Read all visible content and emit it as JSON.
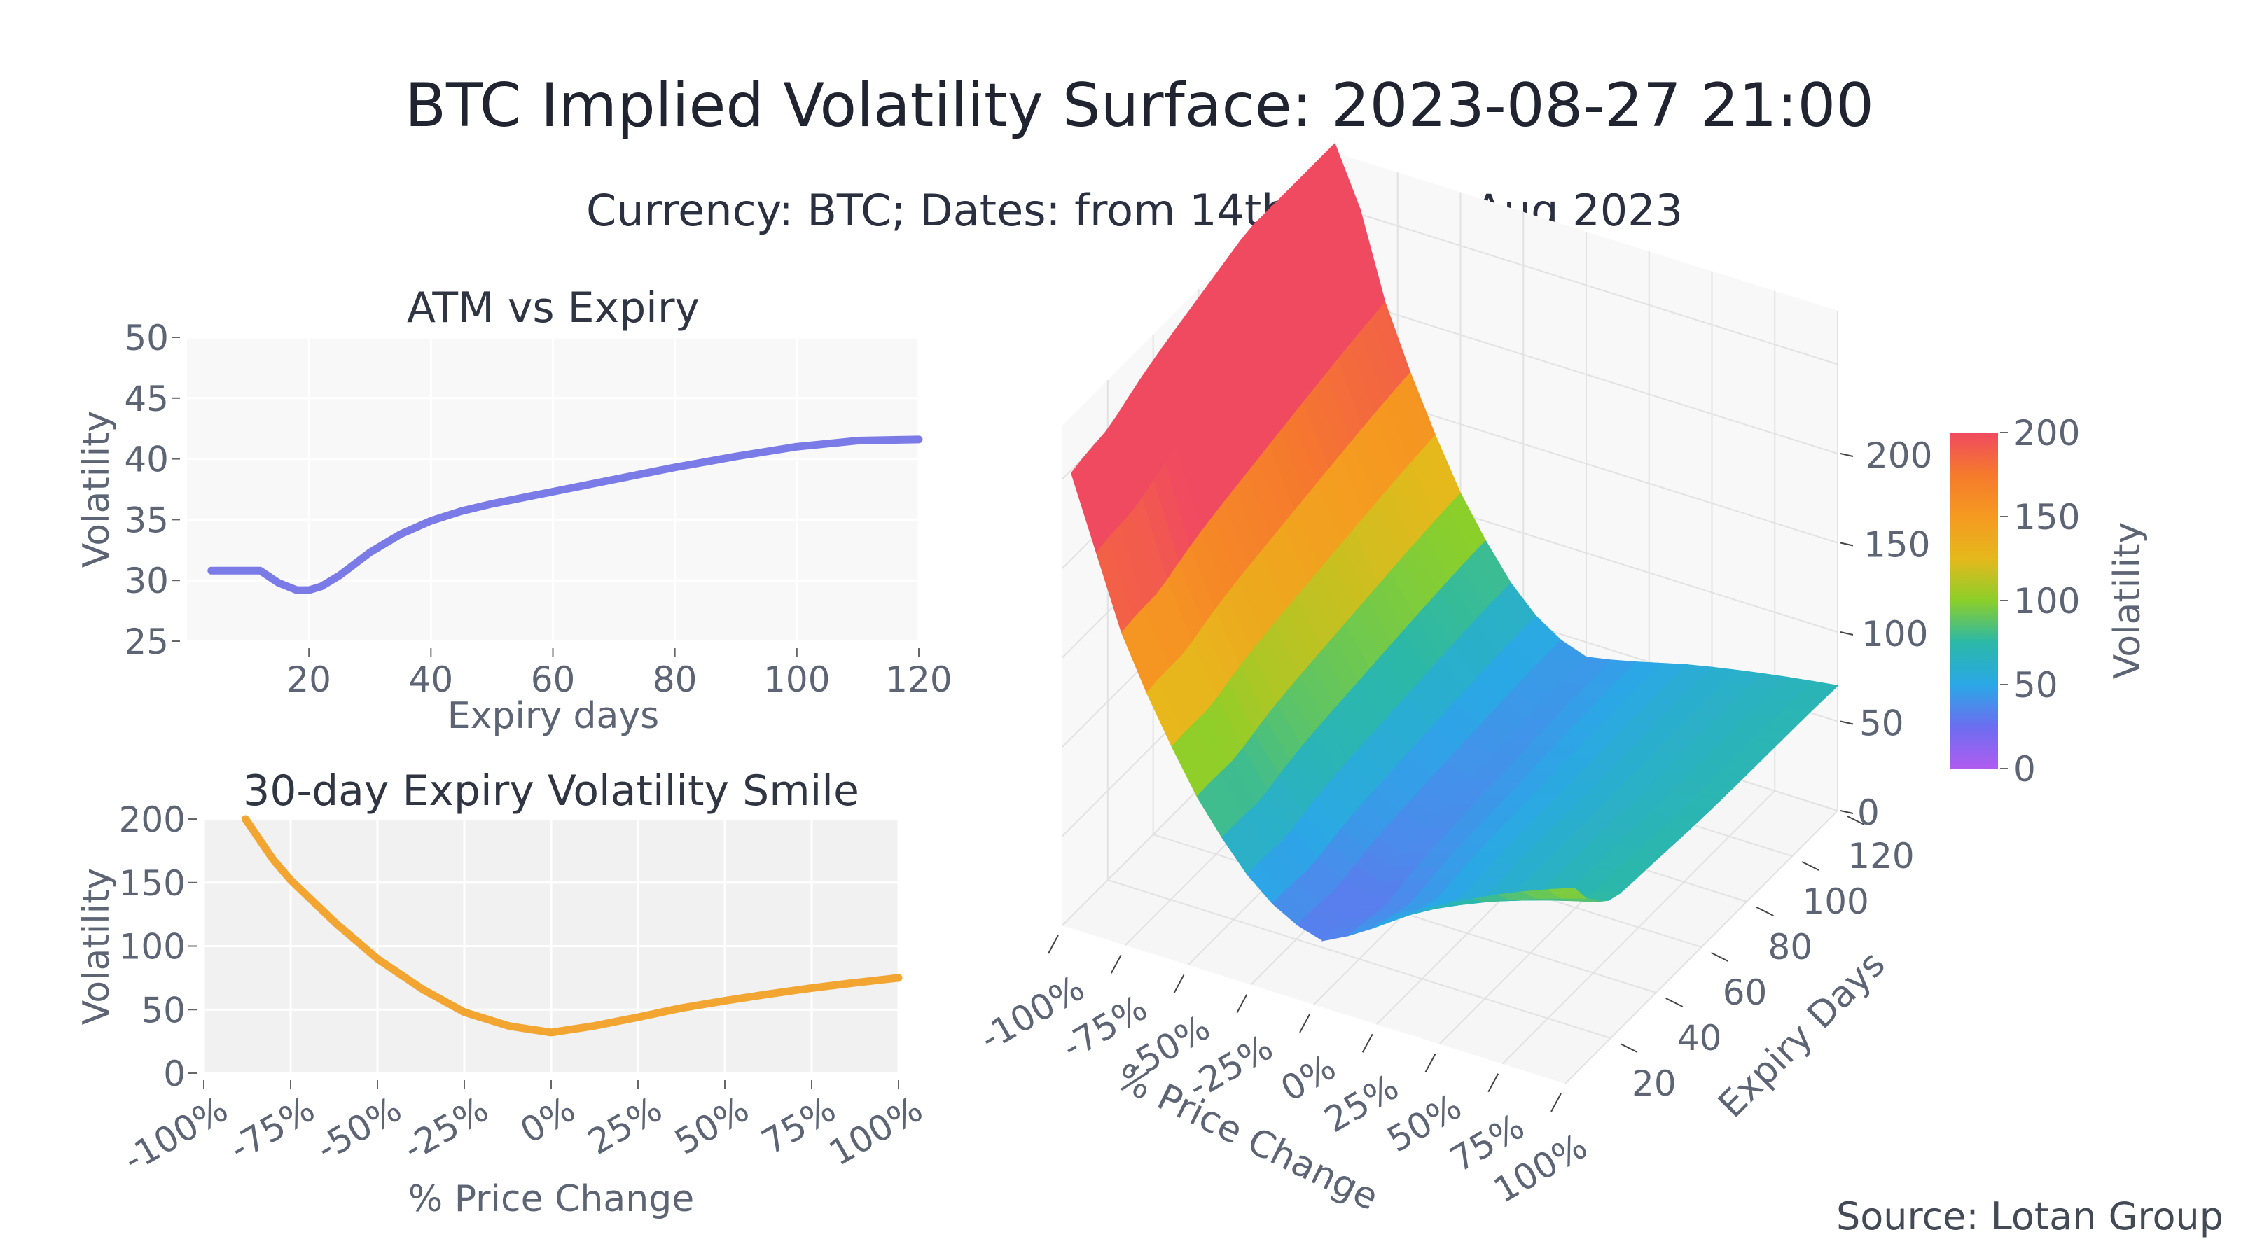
{
  "title": "BTC Implied Volatility Surface: 2023-08-27 21:00",
  "subtitle": "Currency: BTC; Dates: from 14th to 27th Aug 2023",
  "source": "Source: Lotan Group",
  "chart_data": [
    {
      "type": "line",
      "title": "ATM vs Expiry",
      "xlabel": "Expiry days",
      "ylabel": "Volatility",
      "xlim": [
        0,
        120
      ],
      "ylim": [
        25,
        50
      ],
      "xticks": [
        "20",
        "40",
        "60",
        "80",
        "100",
        "120"
      ],
      "yticks": [
        "25",
        "30",
        "35",
        "40",
        "45",
        "50"
      ],
      "grid": true,
      "color": "#7b7be8",
      "x": [
        4,
        8,
        12,
        15,
        18,
        20,
        22,
        25,
        30,
        35,
        40,
        45,
        50,
        60,
        70,
        80,
        90,
        100,
        110,
        120
      ],
      "y": [
        30.8,
        30.8,
        30.8,
        29.8,
        29.2,
        29.2,
        29.5,
        30.4,
        32.3,
        33.8,
        34.9,
        35.7,
        36.3,
        37.3,
        38.3,
        39.3,
        40.2,
        41.0,
        41.5,
        41.6
      ]
    },
    {
      "type": "line",
      "title": "30-day Expiry Volatility Smile",
      "xlabel": "% Price Change",
      "ylabel": "Volatility",
      "xlim": [
        -100,
        100
      ],
      "ylim": [
        0,
        200
      ],
      "xticks": [
        "-100%",
        "-75%",
        "-50%",
        "-25%",
        "0%",
        "25%",
        "50%",
        "75%",
        "100%"
      ],
      "yticks": [
        "0",
        "50",
        "100",
        "150",
        "200"
      ],
      "grid": true,
      "color": "#f2a531",
      "x": [
        -88,
        -80,
        -75,
        -62,
        -50,
        -37,
        -25,
        -12,
        0,
        12,
        25,
        37,
        50,
        62,
        75,
        87,
        100
      ],
      "y": [
        200,
        168,
        152,
        118,
        90,
        66,
        48,
        37,
        32,
        37,
        44,
        51,
        57,
        62,
        67,
        71,
        75
      ]
    },
    {
      "type": "surface",
      "xlabel": "% Price Change",
      "ylabel": "Expiry Days",
      "zlabel": "",
      "xticks": [
        "-100%",
        "-75%",
        "-50%",
        "-25%",
        "0%",
        "25%",
        "50%",
        "75%",
        "100%"
      ],
      "yticks": [
        "20",
        "40",
        "60",
        "80",
        "100",
        "120"
      ],
      "zticks": [
        "0",
        "50",
        "100",
        "150",
        "200"
      ],
      "xlim": [
        -100,
        100
      ],
      "ylim": [
        0,
        120
      ],
      "colorbar": {
        "title": "Volatility",
        "range": [
          0,
          200
        ],
        "ticks": [
          "0",
          "50",
          "100",
          "150",
          "200"
        ],
        "colors": [
          "#b05cf0",
          "#6b6ef0",
          "#2aa8e6",
          "#2bb8a8",
          "#8ccf2a",
          "#e6b81c",
          "#f59a20",
          "#f57a2c",
          "#f04a60"
        ]
      }
    }
  ]
}
